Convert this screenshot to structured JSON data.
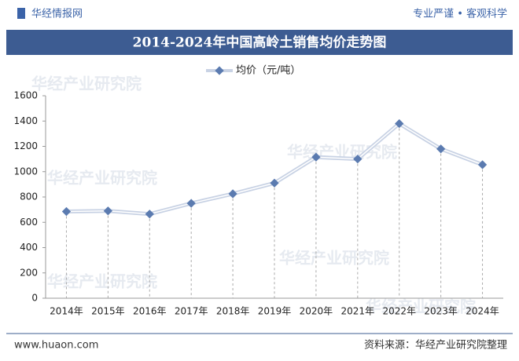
{
  "header": {
    "brand": "华经情报网",
    "slogan": "专业严谨 • 客观科学"
  },
  "chart_data": {
    "type": "line",
    "title": "2014-2024年中国高岭土销售均价走势图",
    "categories": [
      "2014年",
      "2015年",
      "2016年",
      "2017年",
      "2018年",
      "2019年",
      "2020年",
      "2021年",
      "2022年",
      "2023年",
      "2024年"
    ],
    "series": [
      {
        "name": "均价（元/吨）",
        "color": "#5b7bb0",
        "values": [
          685,
          690,
          665,
          750,
          825,
          910,
          1115,
          1100,
          1380,
          1180,
          1055
        ]
      }
    ],
    "ylim": [
      0,
      1600
    ],
    "yticks": [
      0,
      200,
      400,
      600,
      800,
      1000,
      1200,
      1400,
      1600
    ],
    "grid": false,
    "drop_lines": true,
    "legend": "top"
  },
  "watermark": "华经产业研究院",
  "footer": {
    "site": "www.huaon.com",
    "source": "资料来源：华经产业研究院整理"
  }
}
